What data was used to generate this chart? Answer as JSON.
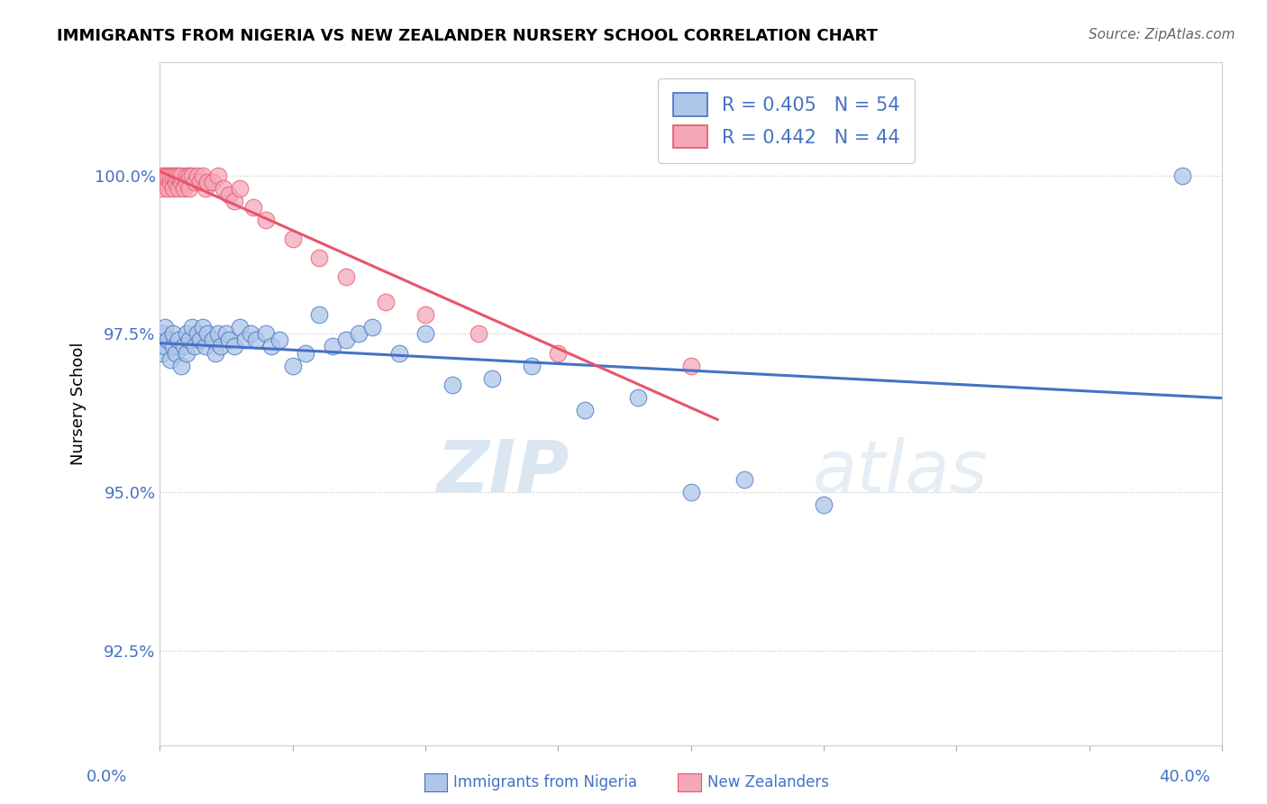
{
  "title": "IMMIGRANTS FROM NIGERIA VS NEW ZEALANDER NURSERY SCHOOL CORRELATION CHART",
  "source": "Source: ZipAtlas.com",
  "ylabel": "Nursery School",
  "ytick_labels": [
    "92.5%",
    "95.0%",
    "97.5%",
    "100.0%"
  ],
  "ytick_values": [
    92.5,
    95.0,
    97.5,
    100.0
  ],
  "xmin": 0.0,
  "xmax": 40.0,
  "ymin": 91.0,
  "ymax": 101.8,
  "legend_r_blue": "R = 0.405",
  "legend_n_blue": "N = 54",
  "legend_r_pink": "R = 0.442",
  "legend_n_pink": "N = 44",
  "blue_color": "#aec6e8",
  "pink_color": "#f4a7b9",
  "trend_blue": "#4472c4",
  "trend_pink": "#e8546a",
  "legend_text_color": "#4472c4",
  "axis_label_color": "#4472c4",
  "blue_scatter_x": [
    0.1,
    0.1,
    0.2,
    0.2,
    0.3,
    0.4,
    0.5,
    0.5,
    0.6,
    0.7,
    0.8,
    0.9,
    1.0,
    1.0,
    1.1,
    1.2,
    1.3,
    1.4,
    1.5,
    1.6,
    1.7,
    1.8,
    2.0,
    2.1,
    2.2,
    2.3,
    2.5,
    2.6,
    2.8,
    3.0,
    3.2,
    3.4,
    3.6,
    4.0,
    4.2,
    4.5,
    5.0,
    5.5,
    6.0,
    6.5,
    7.0,
    7.5,
    8.0,
    9.0,
    10.0,
    11.0,
    12.5,
    14.0,
    16.0,
    18.0,
    20.0,
    22.0,
    25.0,
    38.5
  ],
  "blue_scatter_y": [
    97.2,
    97.5,
    97.3,
    97.6,
    97.4,
    97.1,
    97.3,
    97.5,
    97.2,
    97.4,
    97.0,
    97.3,
    97.5,
    97.2,
    97.4,
    97.6,
    97.3,
    97.5,
    97.4,
    97.6,
    97.3,
    97.5,
    97.4,
    97.2,
    97.5,
    97.3,
    97.5,
    97.4,
    97.3,
    97.6,
    97.4,
    97.5,
    97.4,
    97.5,
    97.3,
    97.4,
    97.0,
    97.2,
    97.8,
    97.3,
    97.4,
    97.5,
    97.6,
    97.2,
    97.5,
    96.7,
    96.8,
    97.0,
    96.3,
    96.5,
    95.0,
    95.2,
    94.8,
    100.0
  ],
  "pink_scatter_x": [
    0.1,
    0.1,
    0.2,
    0.2,
    0.3,
    0.3,
    0.4,
    0.4,
    0.5,
    0.5,
    0.6,
    0.6,
    0.7,
    0.7,
    0.8,
    0.8,
    0.9,
    1.0,
    1.0,
    1.1,
    1.1,
    1.2,
    1.3,
    1.4,
    1.5,
    1.6,
    1.7,
    1.8,
    2.0,
    2.2,
    2.4,
    2.6,
    2.8,
    3.0,
    3.5,
    4.0,
    5.0,
    6.0,
    7.0,
    8.5,
    10.0,
    12.0,
    15.0,
    20.0
  ],
  "pink_scatter_y": [
    99.8,
    100.0,
    99.9,
    100.0,
    99.8,
    100.0,
    99.9,
    100.0,
    100.0,
    99.8,
    99.9,
    100.0,
    99.8,
    100.0,
    99.9,
    100.0,
    99.8,
    100.0,
    99.9,
    100.0,
    99.8,
    100.0,
    99.9,
    100.0,
    99.9,
    100.0,
    99.8,
    99.9,
    99.9,
    100.0,
    99.8,
    99.7,
    99.6,
    99.8,
    99.5,
    99.3,
    99.0,
    98.7,
    98.4,
    98.0,
    97.8,
    97.5,
    97.2,
    97.0
  ],
  "watermark_zip": "ZIP",
  "watermark_atlas": "atlas",
  "background_color": "#ffffff",
  "grid_color": "#c8c8c8"
}
